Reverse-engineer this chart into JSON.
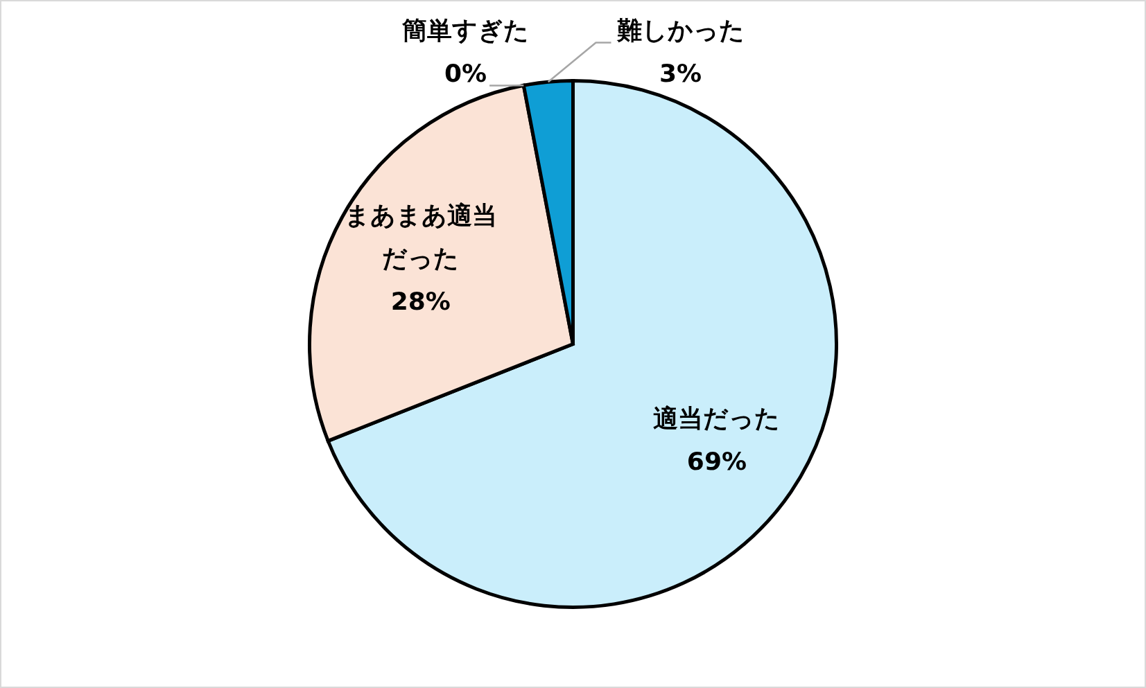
{
  "chart_data": {
    "type": "pie",
    "categories": [
      "適当だった",
      "まあまあ適当だった",
      "簡単すぎた",
      "難しかった"
    ],
    "values": [
      69,
      28,
      0,
      3
    ],
    "colors": [
      "#caeefb",
      "#fbe3d6",
      "#e97132",
      "#0f9ed5"
    ],
    "value_labels": [
      "69%",
      "28%",
      "0%",
      "3%"
    ]
  }
}
